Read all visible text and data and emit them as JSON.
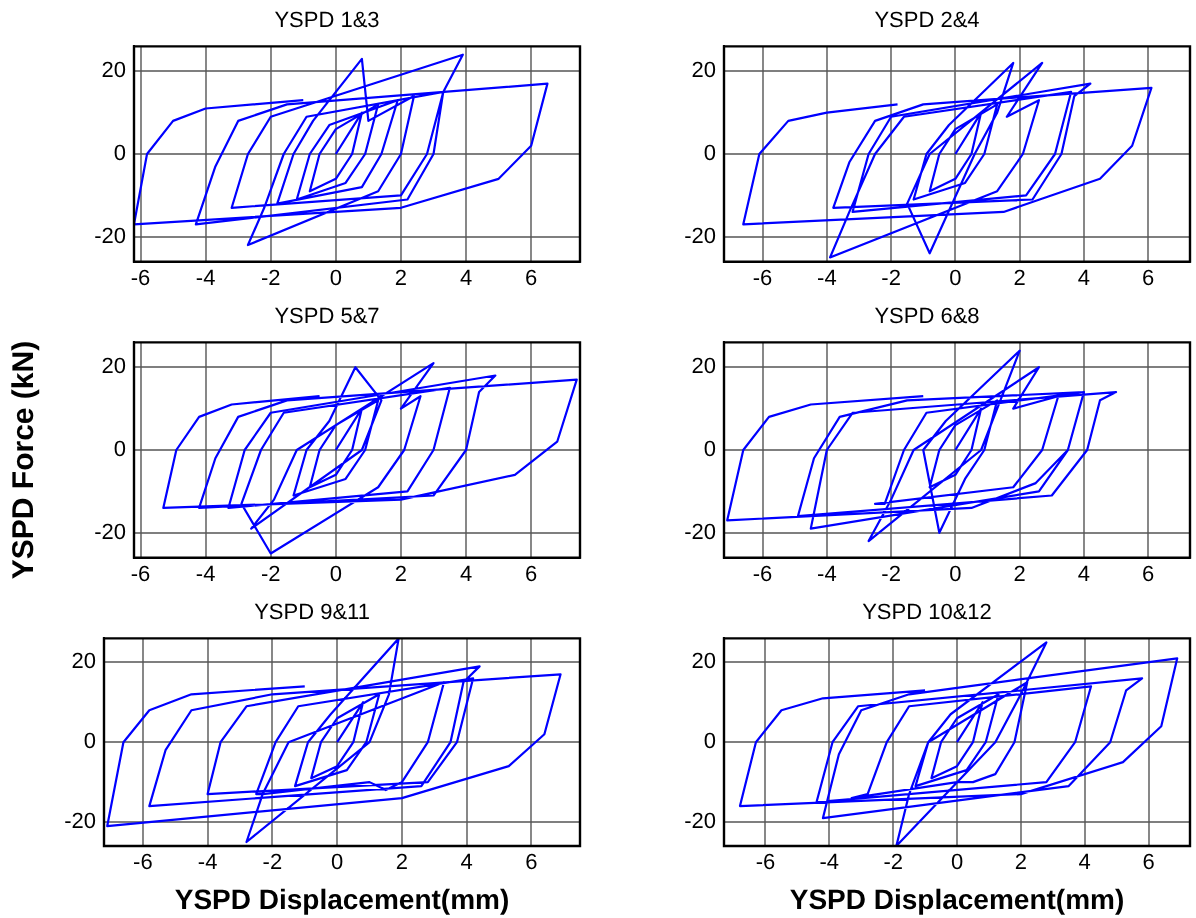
{
  "chart_data": [
    {
      "type": "line",
      "title": "YSPD 1&3",
      "color": "#0000ff",
      "marker": "none",
      "line_style": "solid",
      "grid": true,
      "legend": false,
      "xlim": [
        -6.2,
        7.5
      ],
      "ylim": [
        -26,
        26
      ],
      "xticks": [
        -6,
        -4,
        -2,
        0,
        2,
        4,
        6
      ],
      "yticks": [
        -20,
        0,
        20
      ],
      "x": [
        0,
        0.8,
        0.5,
        0,
        -0.8,
        -0.5,
        0,
        1.3,
        0.9,
        0.3,
        -1.2,
        -0.8,
        -0.2,
        1.9,
        1.4,
        0.8,
        -1.8,
        -1.3,
        -0.7,
        0.8,
        1.0,
        2.4,
        2.0,
        1.3,
        -2.7,
        -2.2,
        -1.6,
        -0.9,
        3.3,
        2.8,
        2.0,
        -3.2,
        -2.7,
        -2.0,
        3.9,
        3.3,
        3.0,
        2.2,
        -4.3,
        -3.7,
        -3.0,
        -1.5,
        6.5,
        6.0,
        5.0,
        2.0,
        -6.2,
        -5.8,
        -5.0,
        -4.0,
        -1.0
      ],
      "values": [
        0,
        10,
        0,
        -6,
        -9,
        0,
        6,
        12,
        0,
        -7,
        -11,
        0,
        7,
        13,
        0,
        -8,
        -12,
        0,
        8,
        23,
        8,
        14,
        0,
        -9,
        -22,
        -13,
        0,
        9,
        15,
        0,
        -10,
        -13,
        0,
        9,
        24,
        15,
        0,
        -11,
        -17,
        -3,
        8,
        12,
        17,
        2,
        -6,
        -13,
        -17,
        0,
        8,
        11,
        13
      ]
    },
    {
      "type": "line",
      "title": "YSPD 2&4",
      "color": "#0000ff",
      "marker": "none",
      "line_style": "solid",
      "grid": true,
      "legend": false,
      "xlim": [
        -7.2,
        7.3
      ],
      "ylim": [
        -26,
        26
      ],
      "xticks": [
        -6,
        -4,
        -2,
        0,
        2,
        4,
        6
      ],
      "yticks": [
        -20,
        0,
        20
      ],
      "x": [
        0,
        0.8,
        0.5,
        0,
        -0.8,
        -0.5,
        0,
        1.3,
        0.9,
        0.3,
        -1.3,
        -0.9,
        -0.2,
        1.8,
        1.3,
        0.6,
        -0.8,
        -1.5,
        -0.8,
        2.7,
        1.6,
        2.6,
        2.1,
        1.3,
        -3.9,
        -3.3,
        -2.5,
        -1.6,
        3.6,
        3.1,
        2.2,
        -3.2,
        -2.7,
        -2.0,
        4.2,
        3.7,
        3.3,
        2.4,
        -3.8,
        -3.3,
        -2.5,
        -1.0,
        6.1,
        5.5,
        4.5,
        1.5,
        -6.6,
        -6.1,
        -5.2,
        -4.0,
        -1.8
      ],
      "values": [
        0,
        10,
        0,
        -6,
        -9,
        0,
        6,
        12,
        0,
        -7,
        -11,
        0,
        7,
        22,
        10,
        0,
        -24,
        -12,
        0,
        22,
        9,
        13,
        0,
        -9,
        -25,
        -14,
        0,
        9,
        15,
        0,
        -10,
        -14,
        0,
        9,
        17,
        14,
        0,
        -11,
        -13,
        -2,
        8,
        12,
        16,
        2,
        -6,
        -14,
        -17,
        0,
        8,
        10,
        12
      ]
    },
    {
      "type": "line",
      "title": "YSPD 5&7",
      "ylabel": "YSPD Force (kN)",
      "color": "#0000ff",
      "marker": "none",
      "line_style": "solid",
      "grid": true,
      "legend": false,
      "xlim": [
        -6.2,
        7.5
      ],
      "ylim": [
        -26,
        26
      ],
      "xticks": [
        -6,
        -4,
        -2,
        0,
        2,
        4,
        6
      ],
      "yticks": [
        -20,
        0,
        20
      ],
      "x": [
        0,
        0.8,
        0.5,
        0,
        -0.8,
        -0.5,
        0,
        1.3,
        0.9,
        0.3,
        -1.3,
        -0.9,
        -0.2,
        0.6,
        1.4,
        0.8,
        -2.6,
        -1.9,
        -1.2,
        3.0,
        2.0,
        2.6,
        2.1,
        1.3,
        -2.0,
        -2.9,
        -2.3,
        -1.6,
        3.5,
        3.0,
        2.2,
        -3.3,
        -2.8,
        -2.0,
        4.9,
        4.4,
        4.0,
        3.0,
        -4.2,
        -3.7,
        -3.0,
        -1.5,
        7.4,
        6.8,
        5.5,
        2.0,
        -5.3,
        -4.9,
        -4.2,
        -3.2,
        -0.5
      ],
      "values": [
        0,
        10,
        0,
        -6,
        -9,
        0,
        6,
        12,
        0,
        -7,
        -11,
        0,
        7,
        20,
        12,
        0,
        -19,
        -12,
        0,
        21,
        10,
        13,
        0,
        -9,
        -25,
        -13,
        0,
        9,
        15,
        0,
        -10,
        -14,
        0,
        9,
        18,
        14,
        0,
        -11,
        -14,
        -2,
        8,
        12,
        17,
        2,
        -6,
        -12,
        -14,
        0,
        8,
        11,
        13
      ]
    },
    {
      "type": "line",
      "title": "YSPD 6&8",
      "color": "#0000ff",
      "marker": "none",
      "line_style": "solid",
      "grid": true,
      "legend": false,
      "xlim": [
        -7.2,
        7.3
      ],
      "ylim": [
        -26,
        26
      ],
      "xticks": [
        -6,
        -4,
        -2,
        0,
        2,
        4,
        6
      ],
      "yticks": [
        -20,
        0,
        20
      ],
      "x": [
        0,
        0.8,
        0.5,
        0,
        -0.8,
        -0.5,
        0,
        1.3,
        0.9,
        0.3,
        -0.5,
        -1.0,
        -0.3,
        2.0,
        1.4,
        0.8,
        -2.7,
        -2.0,
        -1.3,
        2.6,
        1.8,
        3.2,
        2.7,
        1.8,
        -2.5,
        -2.2,
        -1.6,
        -0.9,
        4.0,
        3.5,
        2.6,
        -4.5,
        -4.0,
        -3.2,
        5.0,
        4.5,
        4.1,
        3.0,
        -4.9,
        -4.4,
        -3.6,
        -1.5,
        4.0,
        3.5,
        2.5,
        0.5,
        -7.1,
        -6.6,
        -5.8,
        -4.5,
        -1.0
      ],
      "values": [
        0,
        10,
        0,
        -6,
        -9,
        0,
        6,
        12,
        0,
        -7,
        -20,
        0,
        7,
        24,
        12,
        0,
        -22,
        -12,
        0,
        20,
        10,
        13,
        0,
        -9,
        -13,
        -13,
        0,
        9,
        14,
        0,
        -10,
        -19,
        0,
        9,
        14,
        12,
        0,
        -11,
        -16,
        -2,
        8,
        12,
        14,
        0,
        -8,
        -14,
        -17,
        0,
        8,
        11,
        13
      ]
    },
    {
      "type": "line",
      "title": "YSPD 9&11",
      "xlabel": "YSPD Displacement(mm)",
      "color": "#0000ff",
      "marker": "none",
      "line_style": "solid",
      "grid": true,
      "legend": false,
      "xlim": [
        -7.2,
        7.5
      ],
      "ylim": [
        -26,
        26
      ],
      "xticks": [
        -6,
        -4,
        -2,
        0,
        2,
        4,
        6
      ],
      "yticks": [
        -20,
        0,
        20
      ],
      "x": [
        0,
        0.8,
        0.5,
        0,
        -0.8,
        -0.5,
        0,
        1.3,
        0.9,
        0.3,
        -1.3,
        -0.9,
        -0.2,
        1.9,
        1.6,
        1.0,
        -2.8,
        -2.3,
        -1.5,
        3.3,
        2.8,
        2.0,
        1.5,
        1.0,
        -2.3,
        -2.5,
        -1.9,
        -1.2,
        4.2,
        3.7,
        2.8,
        -4.0,
        -3.6,
        -2.8,
        4.4,
        3.9,
        3.5,
        2.6,
        -5.8,
        -5.3,
        -4.5,
        -2.0,
        6.9,
        6.4,
        5.3,
        2.0,
        -7.1,
        -6.6,
        -5.8,
        -4.5,
        -1.0
      ],
      "values": [
        0,
        10,
        0,
        -6,
        -9,
        0,
        6,
        12,
        0,
        -7,
        -11,
        0,
        7,
        26,
        12,
        0,
        -25,
        -13,
        0,
        15,
        0,
        -10,
        -12,
        -10,
        -13,
        -13,
        0,
        9,
        16,
        0,
        -10,
        -13,
        0,
        9,
        19,
        15,
        0,
        -11,
        -16,
        -2,
        8,
        12,
        17,
        2,
        -6,
        -14,
        -21,
        0,
        8,
        12,
        14
      ]
    },
    {
      "type": "line",
      "title": "YSPD 10&12",
      "xlabel": "YSPD Displacement(mm)",
      "color": "#0000ff",
      "marker": "none",
      "line_style": "solid",
      "grid": true,
      "legend": false,
      "xlim": [
        -7.3,
        7.3
      ],
      "ylim": [
        -26,
        26
      ],
      "xticks": [
        -6,
        -4,
        -2,
        0,
        2,
        4,
        6
      ],
      "yticks": [
        -20,
        0,
        20
      ],
      "x": [
        0,
        0.8,
        0.5,
        0,
        -0.8,
        -0.5,
        0,
        1.3,
        0.9,
        0.3,
        -1.3,
        -0.9,
        -0.2,
        2.8,
        2.0,
        1.2,
        -1.9,
        -1.5,
        -0.9,
        2.2,
        1.8,
        1.2,
        0.5,
        0.0,
        -3.3,
        -2.8,
        -2.2,
        -1.5,
        4.2,
        3.7,
        2.8,
        -4.4,
        -3.9,
        -3.1,
        5.8,
        5.3,
        4.8,
        3.5,
        -4.2,
        -3.7,
        -3.0,
        -1.5,
        6.9,
        6.4,
        5.2,
        2.0,
        -6.8,
        -6.3,
        -5.5,
        -4.2,
        -1.0
      ],
      "values": [
        0,
        10,
        0,
        -6,
        -9,
        0,
        6,
        12,
        0,
        -7,
        -11,
        0,
        7,
        25,
        12,
        0,
        -26,
        -13,
        0,
        15,
        0,
        -8,
        -10,
        -10,
        -14,
        -13,
        0,
        9,
        14,
        0,
        -10,
        -15,
        0,
        9,
        16,
        13,
        0,
        -11,
        -19,
        -3,
        8,
        12,
        21,
        4,
        -5,
        -13,
        -16,
        0,
        8,
        11,
        13
      ]
    }
  ]
}
